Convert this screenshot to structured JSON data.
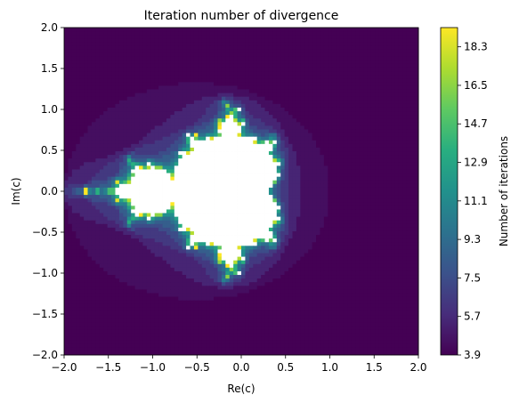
{
  "chart_data": {
    "type": "heatmap",
    "title": "Iteration number of divergence",
    "xlabel": "Re(c)",
    "ylabel": "Im(c)",
    "xlim": [
      -2.0,
      2.0
    ],
    "ylim": [
      -2.0,
      2.0
    ],
    "x_ticks": [
      -2.0,
      -1.5,
      -1.0,
      -0.5,
      0.0,
      0.5,
      1.0,
      1.5,
      2.0
    ],
    "y_ticks": [
      -2.0,
      -1.5,
      -1.0,
      -0.5,
      0.0,
      0.5,
      1.0,
      1.5,
      2.0
    ],
    "x_tick_labels": [
      "−2.0",
      "−1.5",
      "−1.0",
      "−0.5",
      "0.0",
      "0.5",
      "1.0",
      "1.5",
      "2.0"
    ],
    "y_tick_labels": [
      "−2.0",
      "−1.5",
      "−1.0",
      "−0.5",
      "0.0",
      "0.5",
      "1.0",
      "1.5",
      "2.0"
    ],
    "grid": false,
    "colormap": "viridis",
    "bounded_set_color": "#ffffff",
    "colorbar": {
      "label": "Number of iterations",
      "range": [
        3.9,
        19.2
      ],
      "ticks": [
        3.9,
        5.7,
        7.5,
        9.3,
        11.1,
        12.9,
        14.7,
        16.5,
        18.3
      ],
      "tick_labels": [
        "3.9",
        "5.7",
        "7.5",
        "9.3",
        "11.1",
        "12.9",
        "14.7",
        "16.5",
        "18.3"
      ]
    }
  }
}
